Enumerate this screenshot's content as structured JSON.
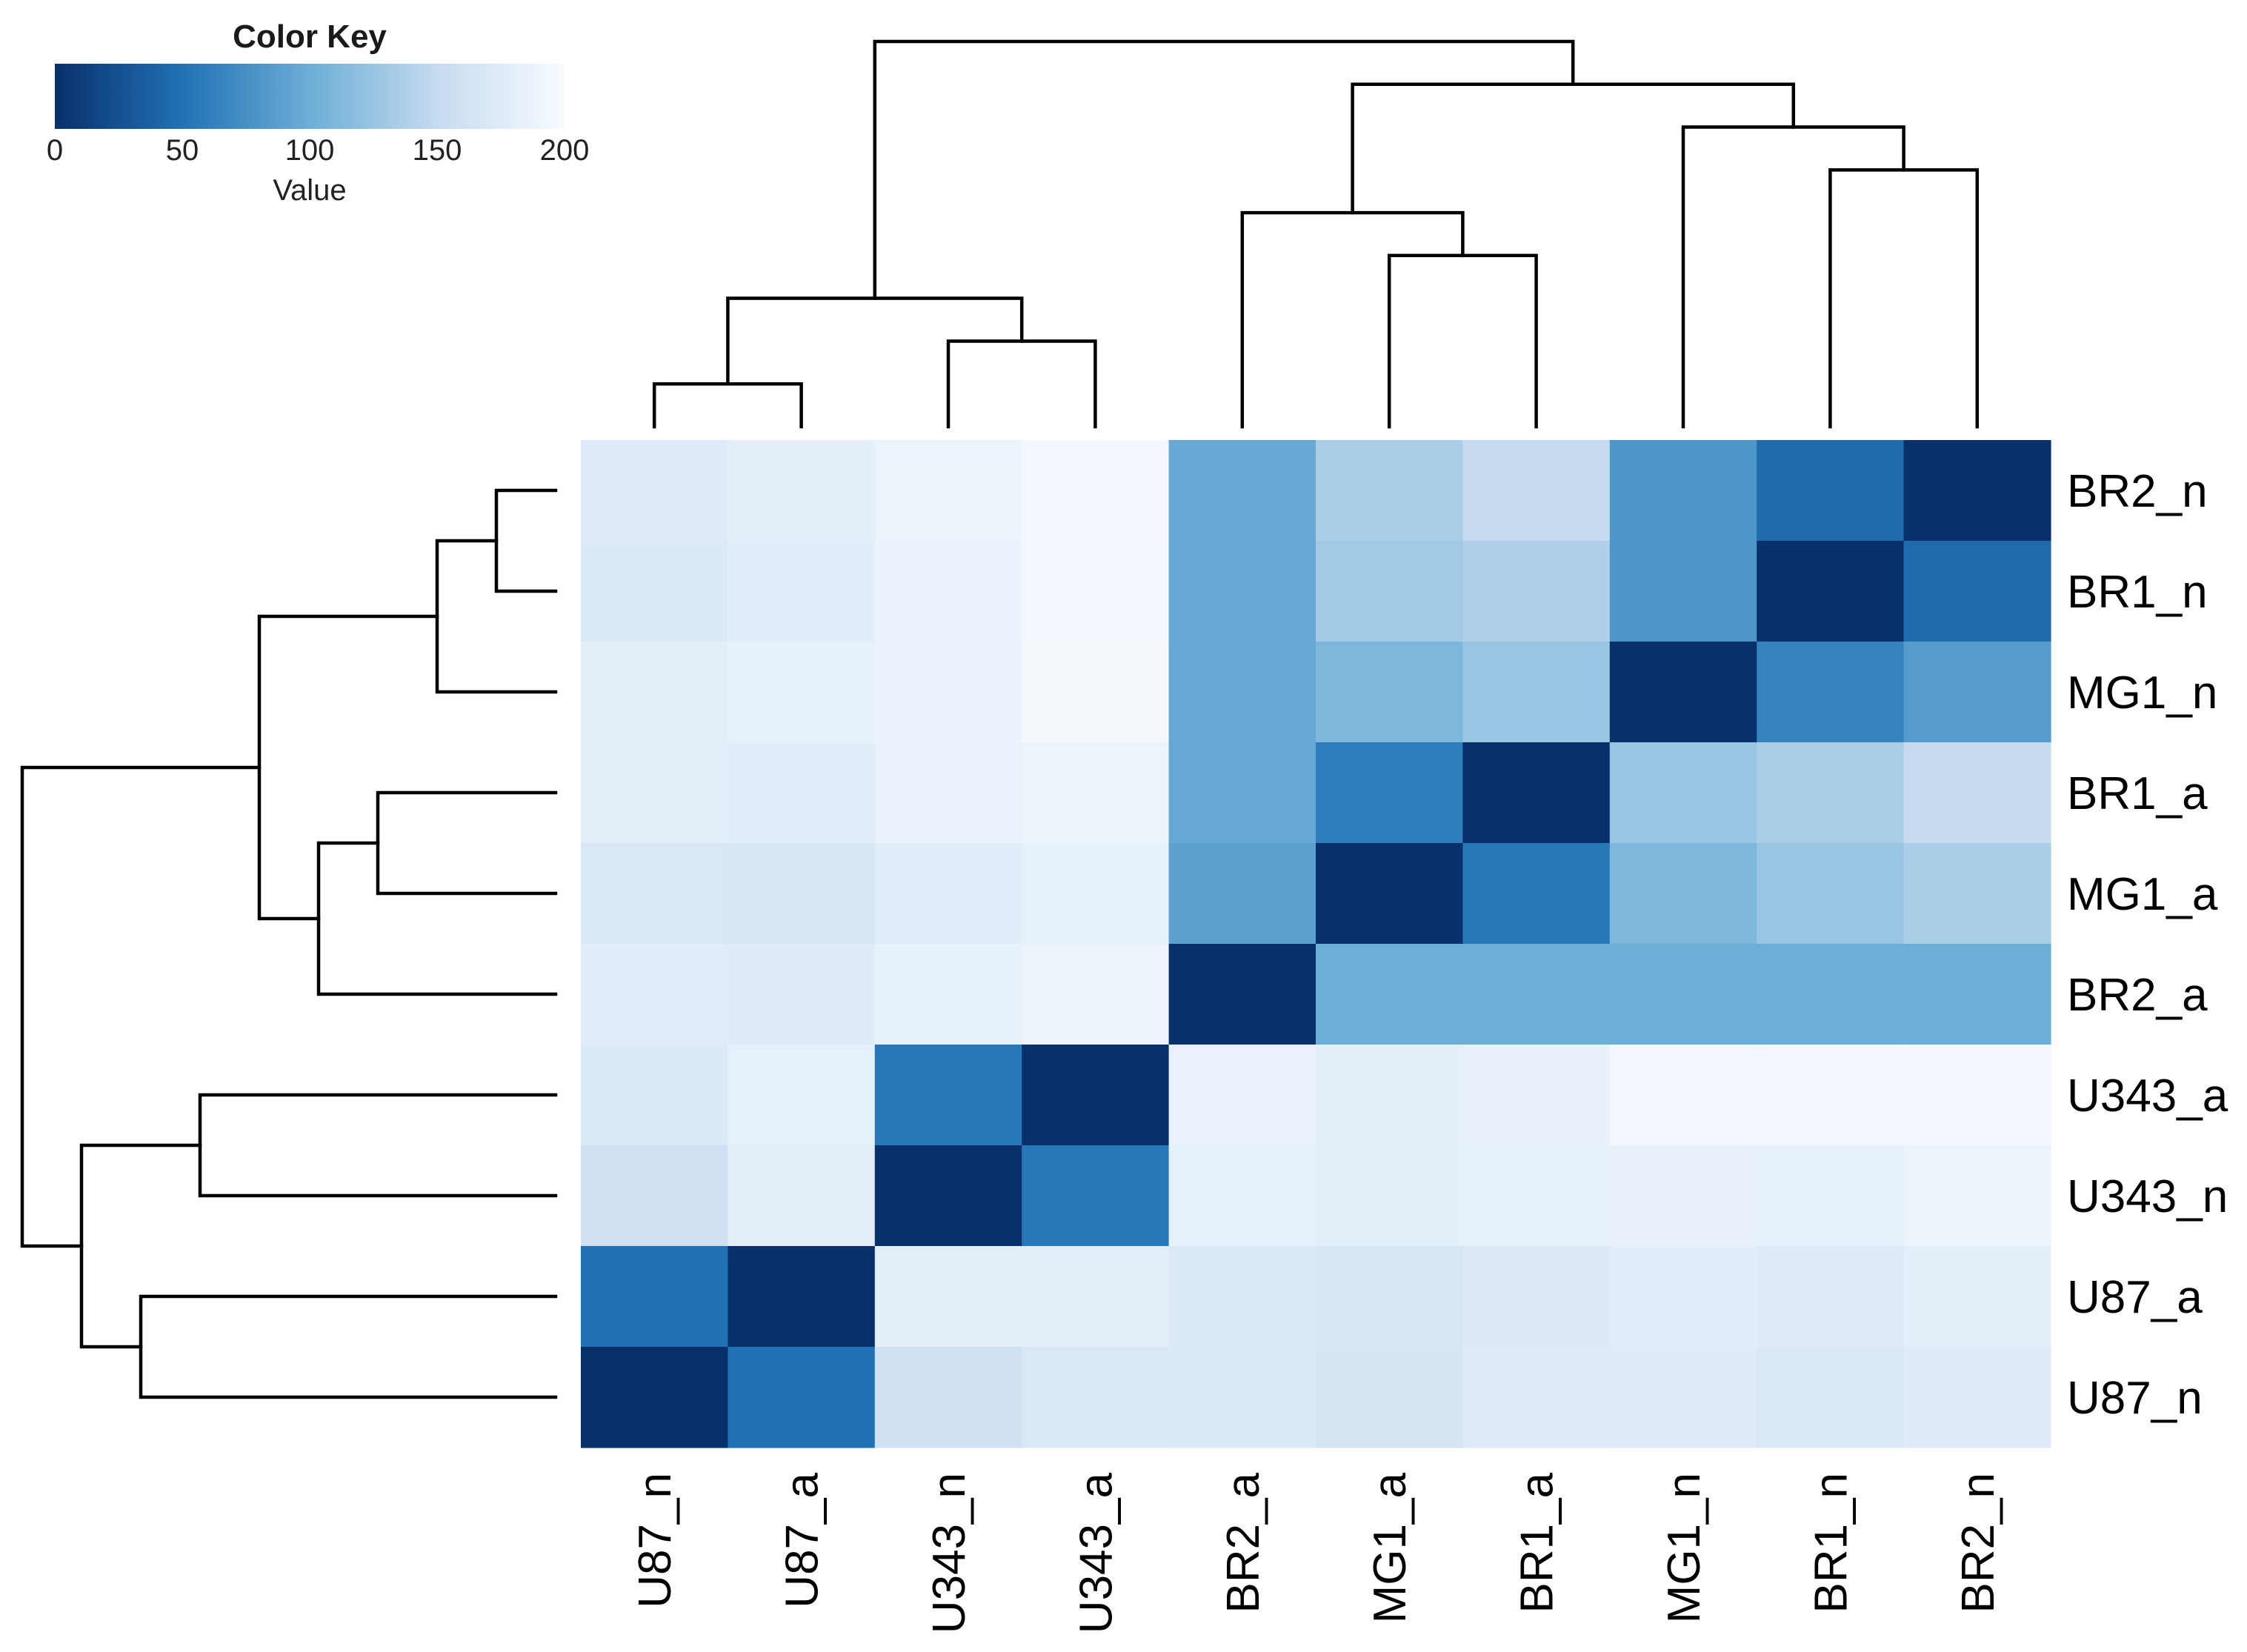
{
  "chart_data": {
    "type": "heatmap",
    "title": "",
    "color_key": {
      "title": "Color Key",
      "xlabel": "Value",
      "ticks": [
        "0",
        "50",
        "100",
        "150",
        "200"
      ],
      "range": [
        0,
        200
      ],
      "colors": [
        "#08306b",
        "#2171b5",
        "#6baed6",
        "#c6dbef",
        "#f7fbff"
      ]
    },
    "rows": [
      "BR2_n",
      "BR1_n",
      "MG1_n",
      "BR1_a",
      "MG1_a",
      "BR2_a",
      "U343_a",
      "U343_n",
      "U87_a",
      "U87_n"
    ],
    "columns": [
      "U87_n",
      "U87_a",
      "U343_n",
      "U343_a",
      "BR2_a",
      "MG1_a",
      "BR1_a",
      "MG1_n",
      "BR1_n",
      "BR2_n"
    ],
    "values": [
      [
        175,
        182,
        188,
        196,
        95,
        135,
        150,
        80,
        45,
        0
      ],
      [
        172,
        178,
        187,
        194,
        95,
        130,
        138,
        80,
        0,
        45
      ],
      [
        180,
        184,
        187,
        197,
        95,
        110,
        125,
        0,
        65,
        85
      ],
      [
        180,
        178,
        186,
        188,
        95,
        60,
        0,
        125,
        135,
        150
      ],
      [
        170,
        168,
        177,
        184,
        90,
        0,
        55,
        110,
        125,
        135
      ],
      [
        178,
        176,
        184,
        188,
        0,
        100,
        100,
        100,
        100,
        100
      ],
      [
        172,
        183,
        55,
        0,
        186,
        182,
        185,
        196,
        194,
        196
      ],
      [
        158,
        180,
        0,
        55,
        184,
        181,
        184,
        185,
        183,
        188
      ],
      [
        50,
        0,
        180,
        180,
        172,
        168,
        173,
        178,
        176,
        180
      ],
      [
        0,
        50,
        160,
        170,
        172,
        165,
        174,
        175,
        170,
        175
      ]
    ],
    "col_dendrogram": [
      [
        0,
        1
      ],
      [
        2,
        3
      ],
      [
        -1,
        -2
      ],
      [
        5,
        6
      ],
      [
        4,
        -4
      ],
      [
        8,
        9
      ],
      [
        7,
        -6
      ],
      [
        -5,
        -7
      ],
      [
        -3,
        -8
      ]
    ],
    "row_dendrogram": [
      [
        0,
        1
      ],
      [
        -1,
        2
      ],
      [
        3,
        4
      ],
      [
        -3,
        5
      ],
      [
        -2,
        -4
      ],
      [
        6,
        7
      ],
      [
        8,
        9
      ],
      [
        -6,
        -7
      ],
      [
        -5,
        -8
      ]
    ]
  }
}
